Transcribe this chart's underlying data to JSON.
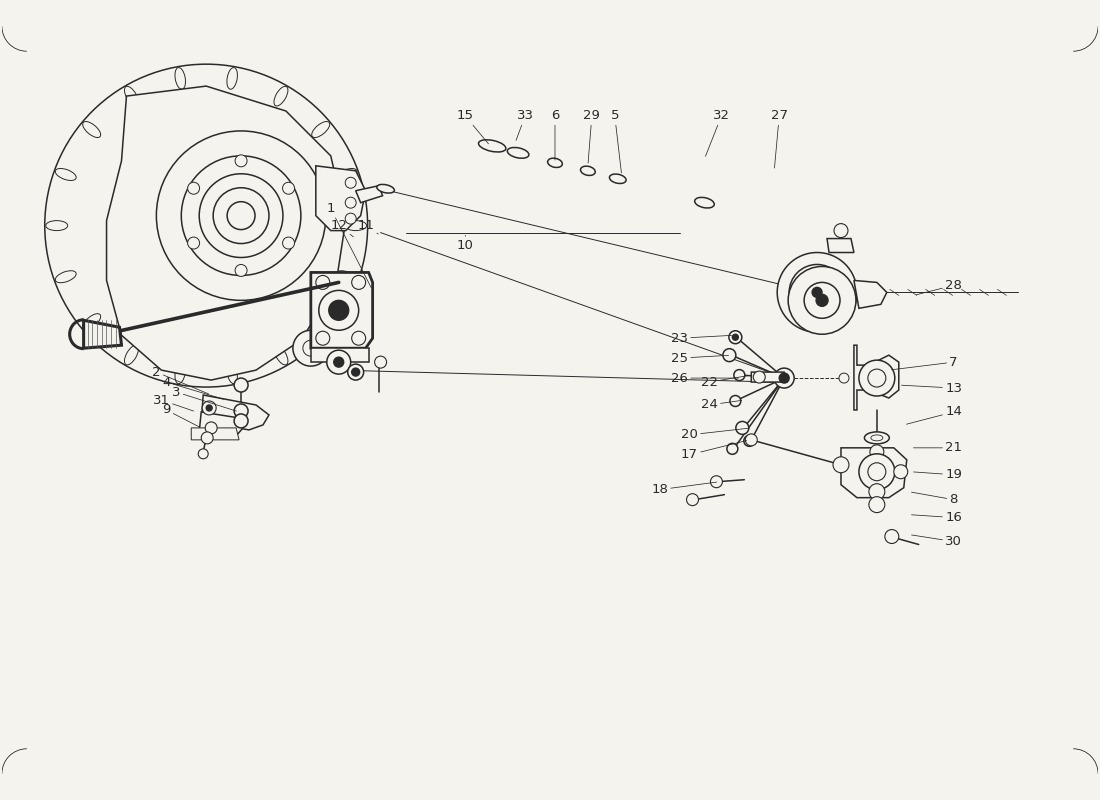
{
  "bg_color": "#f5f3ee",
  "line_color": "#2a2a2a",
  "fig_width": 11.0,
  "fig_height": 8.0,
  "ann_data": [
    [
      "1",
      3.3,
      5.92,
      3.72,
      5.1
    ],
    [
      "2",
      1.55,
      4.28,
      2.1,
      4.05
    ],
    [
      "3",
      1.75,
      4.08,
      2.38,
      3.88
    ],
    [
      "4",
      1.65,
      4.18,
      2.25,
      4.0
    ],
    [
      "5",
      6.15,
      6.85,
      6.22,
      6.25
    ],
    [
      "6",
      5.55,
      6.85,
      5.55,
      6.38
    ],
    [
      "7",
      9.55,
      4.38,
      8.9,
      4.3
    ],
    [
      "8",
      9.55,
      3.0,
      9.1,
      3.08
    ],
    [
      "9",
      1.65,
      3.9,
      2.0,
      3.72
    ],
    [
      "10",
      4.65,
      5.55,
      4.65,
      5.68
    ],
    [
      "11",
      3.65,
      5.75,
      3.8,
      5.65
    ],
    [
      "12",
      3.38,
      5.75,
      3.55,
      5.62
    ],
    [
      "13",
      9.55,
      4.12,
      9.0,
      4.15
    ],
    [
      "14",
      9.55,
      3.88,
      9.05,
      3.75
    ],
    [
      "15",
      4.65,
      6.85,
      4.9,
      6.55
    ],
    [
      "16",
      9.55,
      2.82,
      9.1,
      2.85
    ],
    [
      "17",
      6.9,
      3.45,
      7.5,
      3.6
    ],
    [
      "18",
      6.6,
      3.1,
      7.2,
      3.18
    ],
    [
      "19",
      9.55,
      3.25,
      9.12,
      3.28
    ],
    [
      "20",
      6.9,
      3.65,
      7.52,
      3.72
    ],
    [
      "21",
      9.55,
      3.52,
      9.12,
      3.52
    ],
    [
      "22",
      7.1,
      4.18,
      7.52,
      4.25
    ],
    [
      "23",
      6.8,
      4.62,
      7.35,
      4.65
    ],
    [
      "24",
      7.1,
      3.95,
      7.45,
      4.0
    ],
    [
      "25",
      6.8,
      4.42,
      7.32,
      4.45
    ],
    [
      "26",
      6.8,
      4.22,
      7.42,
      4.22
    ],
    [
      "27",
      7.8,
      6.85,
      7.75,
      6.3
    ],
    [
      "28",
      9.55,
      5.15,
      9.15,
      5.05
    ],
    [
      "29",
      5.92,
      6.85,
      5.88,
      6.35
    ],
    [
      "30",
      9.55,
      2.58,
      9.1,
      2.65
    ],
    [
      "31",
      1.6,
      4.0,
      1.95,
      3.88
    ],
    [
      "32",
      7.22,
      6.85,
      7.05,
      6.42
    ],
    [
      "33",
      5.25,
      6.85,
      5.15,
      6.58
    ]
  ]
}
